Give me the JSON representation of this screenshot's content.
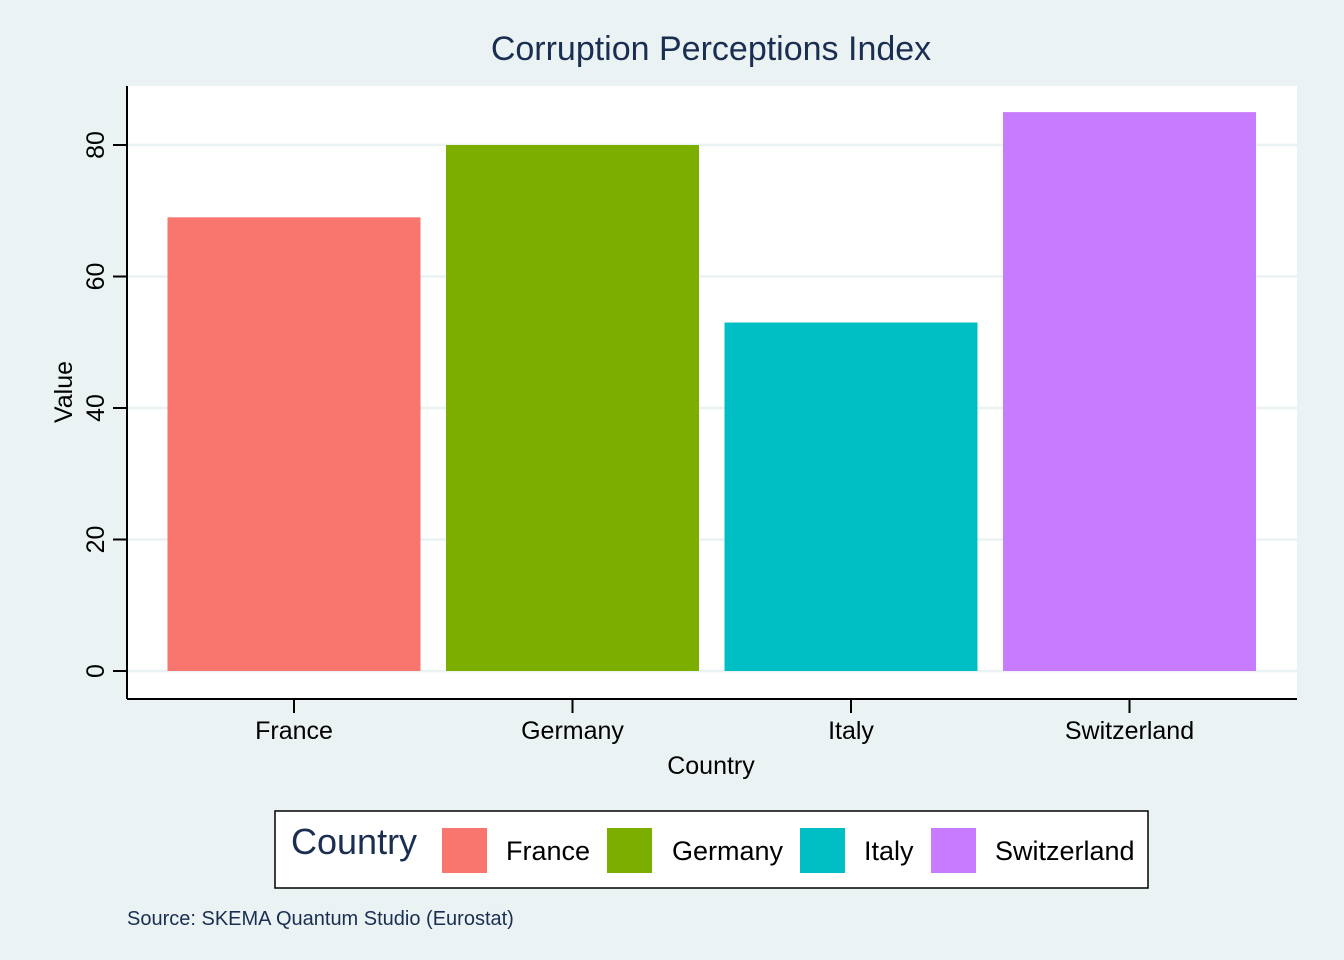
{
  "chart_data": {
    "type": "bar",
    "title": "Corruption Perceptions Index",
    "xlabel": "Country",
    "ylabel": "Value",
    "categories": [
      "France",
      "Germany",
      "Italy",
      "Switzerland"
    ],
    "values": [
      69,
      80,
      53,
      85
    ],
    "colors": [
      "#f8766d",
      "#7cae00",
      "#00bfc4",
      "#c77cff"
    ],
    "ylim": [
      0,
      85
    ],
    "yticks": [
      "0",
      "20",
      "40",
      "60",
      "80"
    ],
    "grid": true,
    "legend": {
      "title": "Country",
      "position": "bottom",
      "entries": [
        "France",
        "Germany",
        "Italy",
        "Switzerland"
      ]
    },
    "caption": "Source: SKEMA Quantum Studio (Eurostat)"
  },
  "colors": {
    "background": "#eaf2f3",
    "plot_background": "#ffffff",
    "title": "#1a2e52"
  }
}
